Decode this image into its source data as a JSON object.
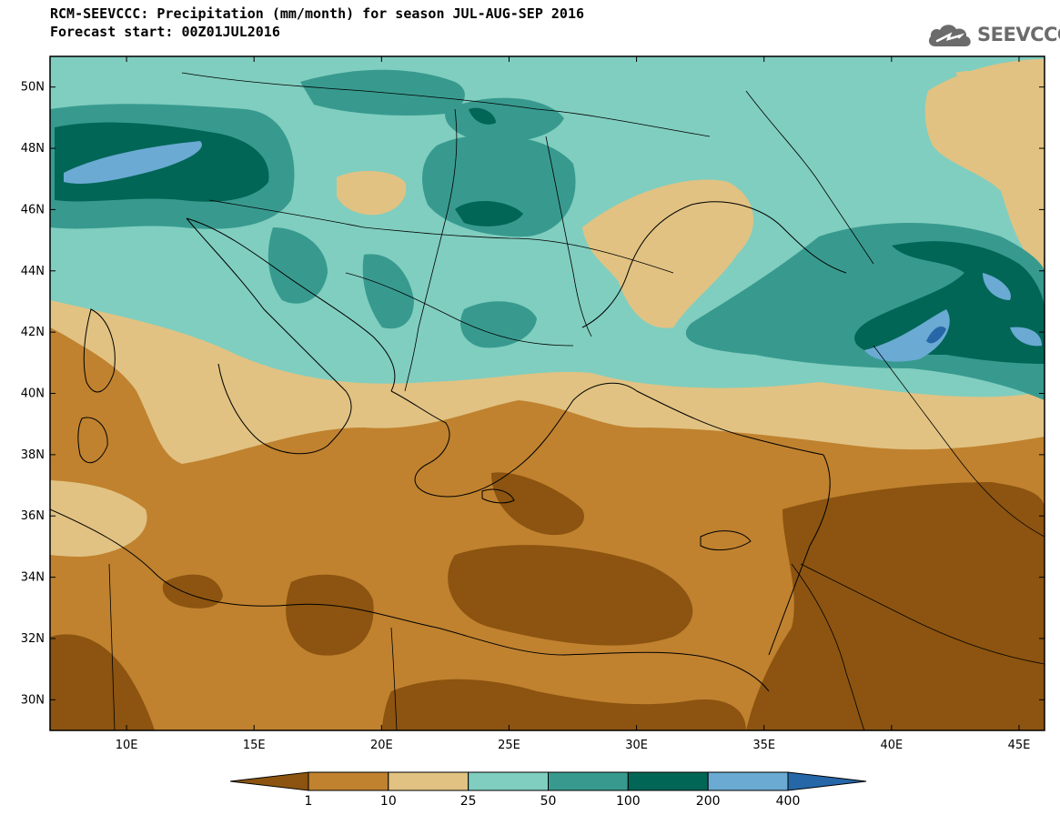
{
  "title_line1": "RCM-SEEVCCC: Precipitation (mm/month) for season JUL-AUG-SEP 2016",
  "title_line2": "Forecast start: 00Z01JUL2016",
  "logo": {
    "text": "SEEVCCC",
    "icon": "cloud-icon",
    "color": "#6b6b6b"
  },
  "map": {
    "lon_range": [
      7,
      46
    ],
    "lat_range": [
      29,
      51
    ],
    "x_ticks": [
      {
        "lon": 10,
        "label": "10E"
      },
      {
        "lon": 15,
        "label": "15E"
      },
      {
        "lon": 20,
        "label": "20E"
      },
      {
        "lon": 25,
        "label": "25E"
      },
      {
        "lon": 30,
        "label": "30E"
      },
      {
        "lon": 35,
        "label": "35E"
      },
      {
        "lon": 40,
        "label": "40E"
      },
      {
        "lon": 45,
        "label": "45E"
      }
    ],
    "y_ticks": [
      {
        "lat": 30,
        "label": "30N"
      },
      {
        "lat": 32,
        "label": "32N"
      },
      {
        "lat": 34,
        "label": "34N"
      },
      {
        "lat": 36,
        "label": "36N"
      },
      {
        "lat": 38,
        "label": "38N"
      },
      {
        "lat": 40,
        "label": "40N"
      },
      {
        "lat": 42,
        "label": "42N"
      },
      {
        "lat": 44,
        "label": "44N"
      },
      {
        "lat": 46,
        "label": "46N"
      },
      {
        "lat": 48,
        "label": "48N"
      },
      {
        "lat": 50,
        "label": "50N"
      }
    ]
  },
  "legend": {
    "colors": [
      "#8c5410",
      "#c0822f",
      "#e1c282",
      "#80cebf",
      "#389a8f",
      "#016656",
      "#6aaad3",
      "#2667a8"
    ],
    "labels": [
      "1",
      "10",
      "25",
      "50",
      "100",
      "200",
      "400"
    ]
  }
}
